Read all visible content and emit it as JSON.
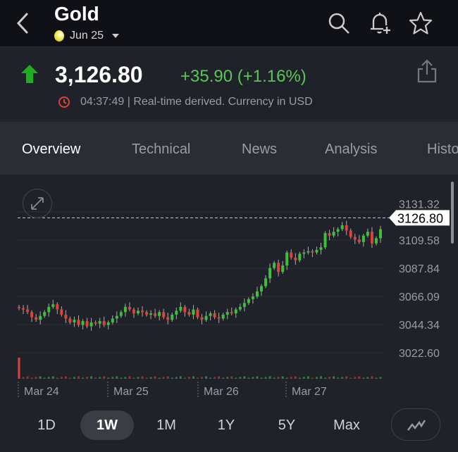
{
  "header": {
    "title": "Gold",
    "contract": "Jun 25",
    "icons": [
      "back-chevron-icon",
      "search-icon",
      "bell-plus-icon",
      "star-icon"
    ]
  },
  "quote": {
    "price": "3,126.80",
    "change": "+35.90 (+1.16%)",
    "time": "04:37:49 | Real-time derived. Currency in USD",
    "direction": "up",
    "up_color": "#5cc55a",
    "down_color": "#e0413a"
  },
  "tabs": [
    {
      "label": "Overview",
      "active": true
    },
    {
      "label": "Technical"
    },
    {
      "label": "News"
    },
    {
      "label": "Analysis"
    },
    {
      "label": "Historical"
    }
  ],
  "chart_data": {
    "type": "candlestick",
    "current_price_label": "3126.80",
    "current_price": 3126.8,
    "yticks": [
      "3131.32",
      "3109.58",
      "3087.84",
      "3066.09",
      "3044.34",
      "3022.60"
    ],
    "xticks": [
      "Mar 24",
      "Mar 25",
      "Mar 26",
      "Mar 27"
    ],
    "grid": true,
    "closes": [
      3057,
      3056,
      3054,
      3050,
      3048,
      3051,
      3054,
      3058,
      3060,
      3056,
      3052,
      3049,
      3046,
      3048,
      3044,
      3047,
      3043,
      3046,
      3045,
      3047,
      3044,
      3046,
      3049,
      3051,
      3054,
      3058,
      3056,
      3053,
      3055,
      3054,
      3052,
      3053,
      3051,
      3054,
      3050,
      3048,
      3052,
      3055,
      3058,
      3054,
      3052,
      3056,
      3050,
      3048,
      3051,
      3053,
      3050,
      3049,
      3052,
      3054,
      3053,
      3056,
      3058,
      3061,
      3064,
      3066,
      3070,
      3074,
      3080,
      3088,
      3092,
      3085,
      3090,
      3100,
      3096,
      3094,
      3099,
      3100,
      3101,
      3100,
      3102,
      3104,
      3115,
      3113,
      3116,
      3118,
      3121,
      3117,
      3112,
      3110,
      3108,
      3113,
      3116,
      3107,
      3111,
      3118
    ]
  },
  "ranges": [
    {
      "label": "1D"
    },
    {
      "label": "1W",
      "active": true
    },
    {
      "label": "1M"
    },
    {
      "label": "1Y"
    },
    {
      "label": "5Y"
    },
    {
      "label": "Max"
    }
  ]
}
